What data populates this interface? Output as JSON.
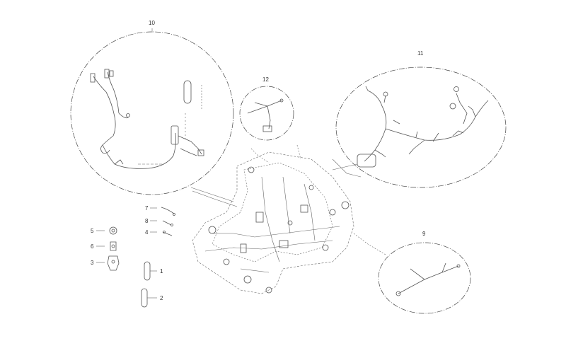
{
  "callouts": {
    "c10": "10",
    "c11": "11",
    "c12": "12",
    "c9": "9",
    "c7": "7",
    "c8": "8",
    "c4": "4",
    "c5": "5",
    "c6": "6",
    "c3": "3",
    "c1": "1",
    "c2": "2"
  },
  "colors": {
    "line": "#555555",
    "background": "#ffffff"
  }
}
